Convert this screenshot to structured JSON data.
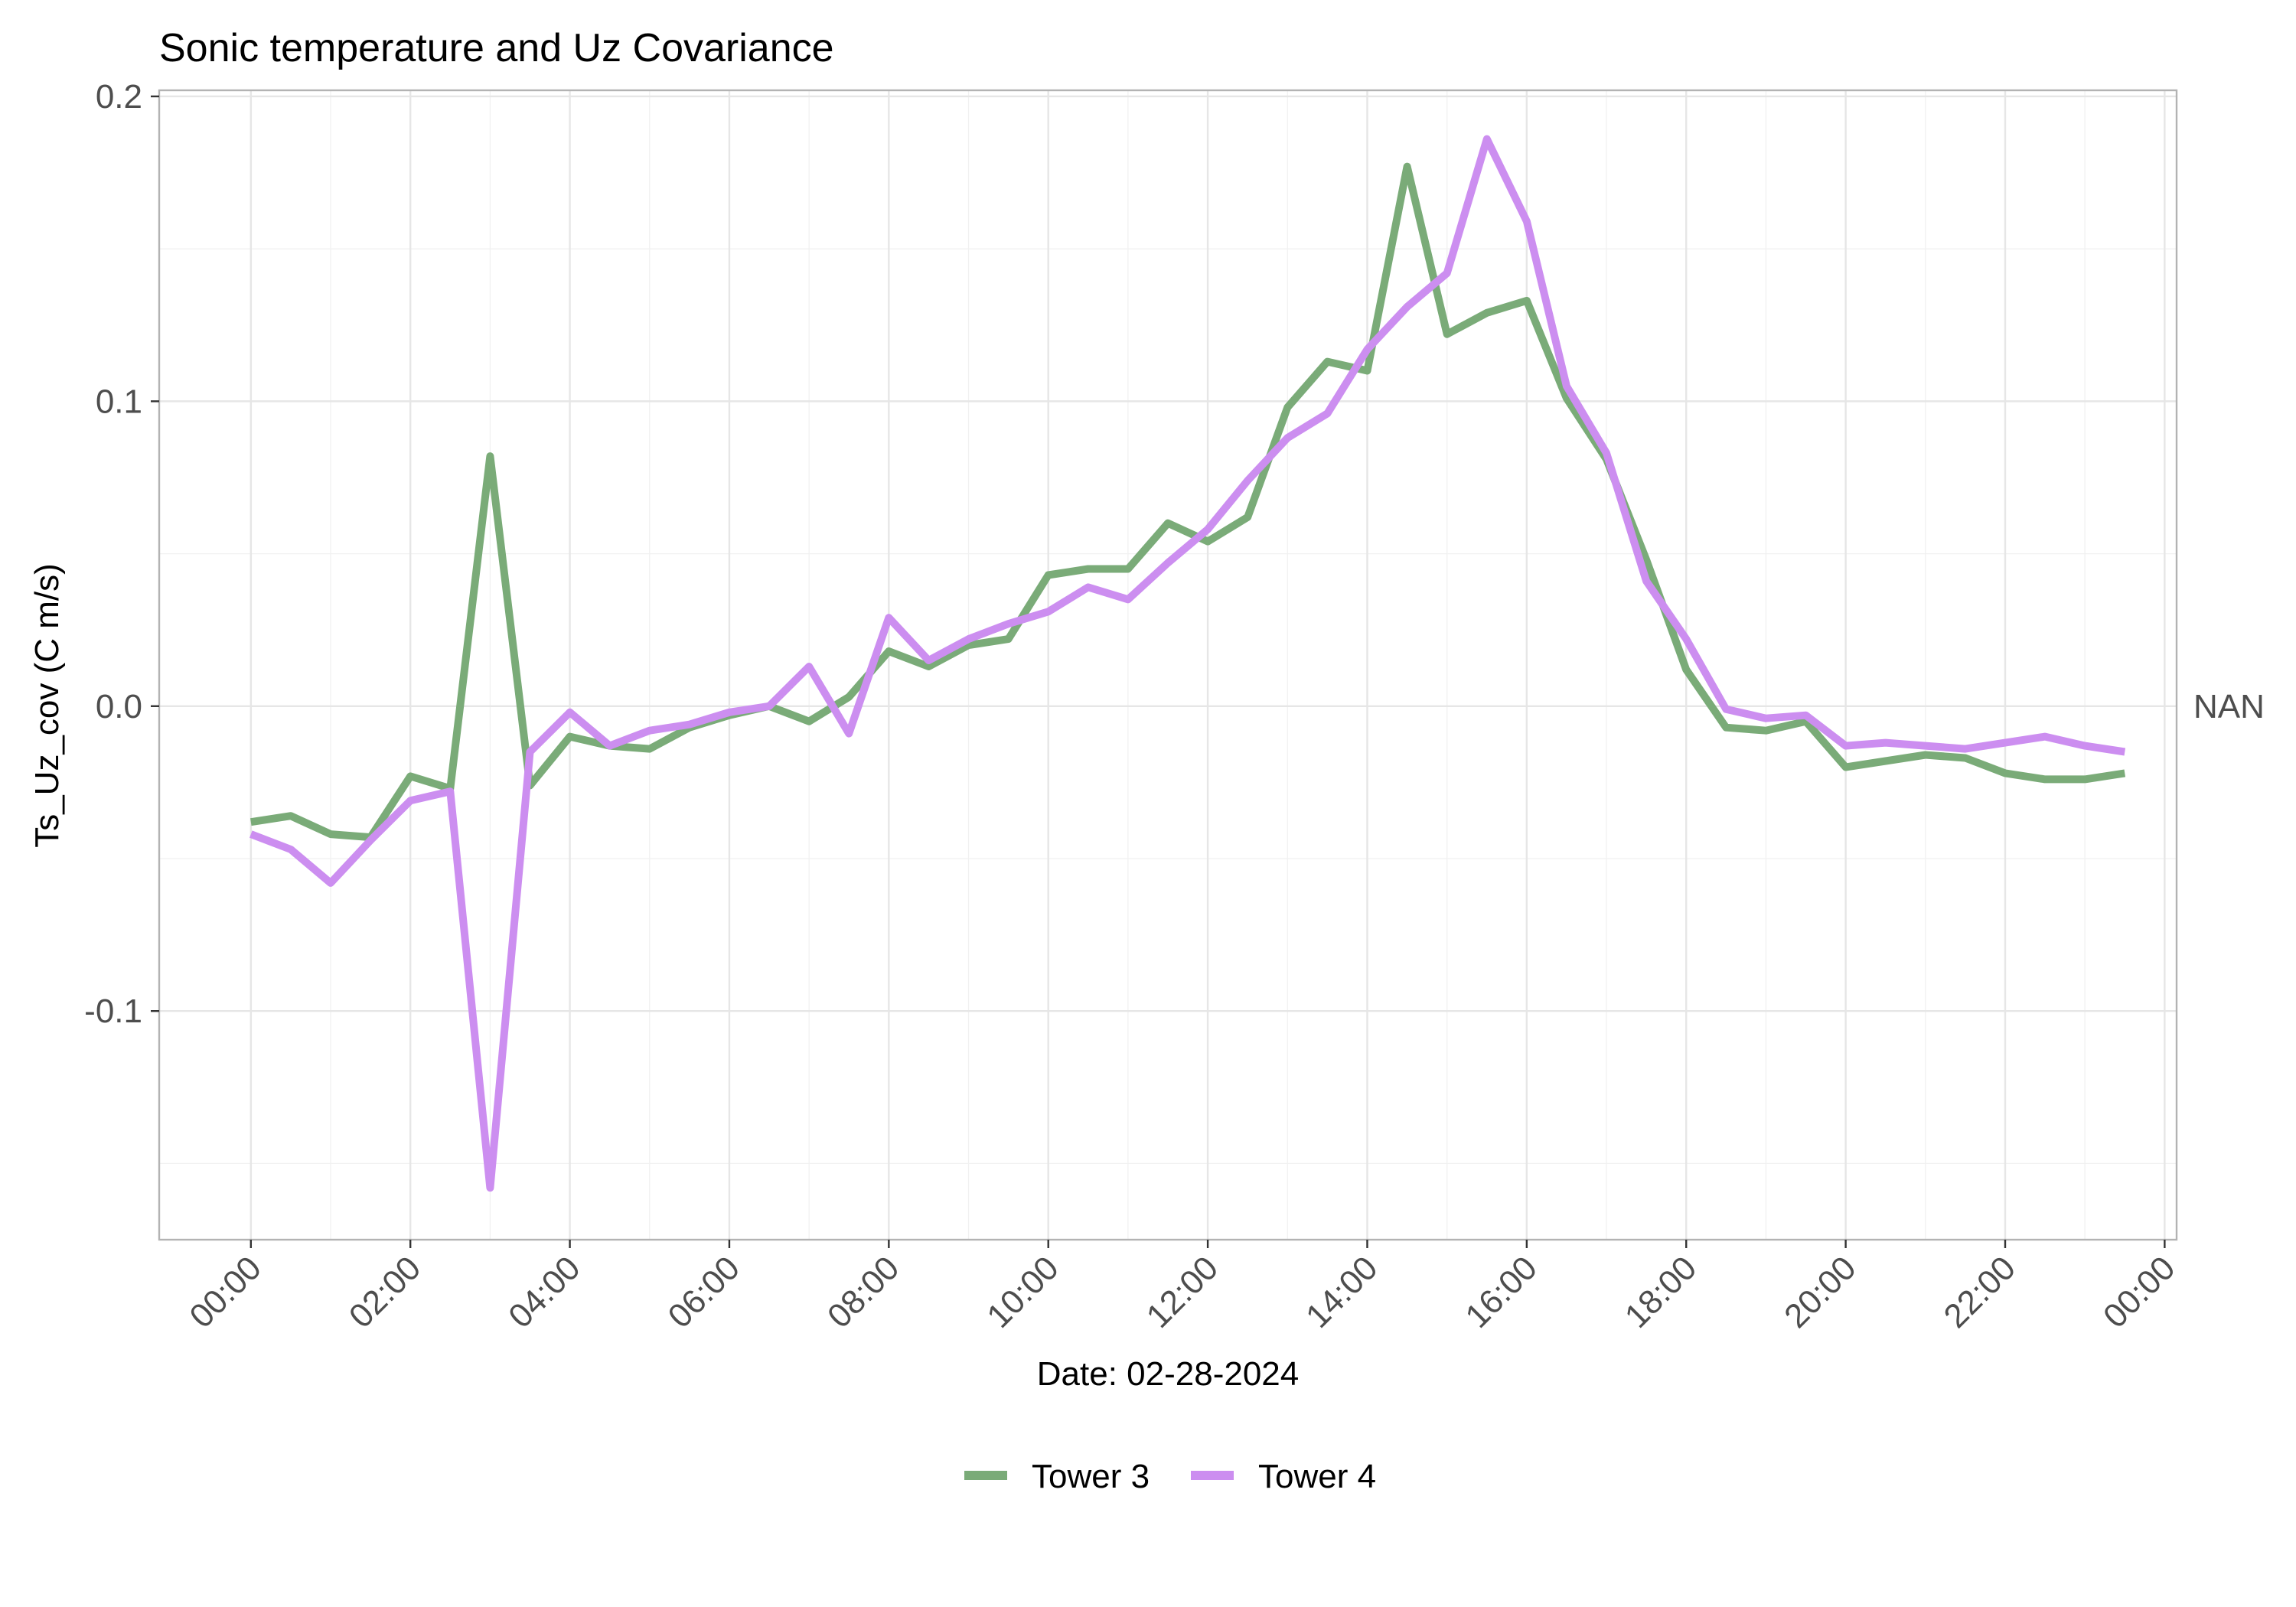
{
  "chart_data": {
    "type": "line",
    "title": "Sonic temperature and Uz Covariance",
    "xlabel": "Date: 02-28-2024",
    "ylabel": "Ts_Uz_cov (C m/s)",
    "secondary_axis_label": "NAN",
    "x_ticks": [
      "00:00",
      "02:00",
      "04:00",
      "06:00",
      "08:00",
      "10:00",
      "12:00",
      "14:00",
      "16:00",
      "18:00",
      "20:00",
      "22:00",
      "00:00"
    ],
    "y_ticks": [
      "-0.1",
      "0.0",
      "0.1",
      "0.2"
    ],
    "xlim_hours": [
      -1.15,
      24.15
    ],
    "ylim": [
      -0.175,
      0.202
    ],
    "grid": true,
    "legend_position": "bottom",
    "x": [
      "00:00",
      "00:30",
      "01:00",
      "01:30",
      "02:00",
      "02:30",
      "03:00",
      "03:30",
      "04:00",
      "04:30",
      "05:00",
      "05:30",
      "06:00",
      "06:30",
      "07:00",
      "07:30",
      "08:00",
      "08:30",
      "09:00",
      "09:30",
      "10:00",
      "10:30",
      "11:00",
      "11:30",
      "12:00",
      "12:30",
      "13:00",
      "13:30",
      "14:00",
      "14:30",
      "15:00",
      "15:30",
      "16:00",
      "16:30",
      "17:00",
      "17:30",
      "18:00",
      "18:30",
      "19:00",
      "19:30",
      "20:00",
      "20:30",
      "21:00",
      "21:30",
      "22:00",
      "22:30",
      "23:00",
      "23:30"
    ],
    "series": [
      {
        "name": "Tower 3",
        "color": "#7aab78",
        "values": [
          -0.038,
          -0.036,
          -0.042,
          -0.043,
          -0.023,
          -0.027,
          0.082,
          -0.026,
          -0.01,
          -0.013,
          -0.014,
          -0.007,
          -0.003,
          0.0,
          -0.005,
          0.003,
          0.018,
          0.013,
          0.02,
          0.022,
          0.043,
          0.045,
          0.045,
          0.06,
          0.054,
          0.062,
          0.098,
          0.113,
          0.11,
          0.177,
          0.122,
          0.129,
          0.133,
          0.101,
          0.081,
          0.048,
          0.012,
          -0.007,
          -0.008,
          -0.005,
          -0.02,
          -0.018,
          -0.016,
          -0.017,
          -0.022,
          -0.024,
          -0.024,
          -0.022
        ]
      },
      {
        "name": "Tower 4",
        "color": "#cc8ef0",
        "values": [
          -0.042,
          -0.047,
          -0.058,
          -0.044,
          -0.031,
          -0.028,
          -0.158,
          -0.015,
          -0.002,
          -0.013,
          -0.008,
          -0.006,
          -0.002,
          0.0,
          0.013,
          -0.009,
          0.029,
          0.015,
          0.022,
          0.027,
          0.031,
          0.039,
          0.035,
          0.047,
          0.058,
          0.074,
          0.088,
          0.096,
          0.117,
          0.131,
          0.142,
          0.186,
          0.159,
          0.105,
          0.083,
          0.041,
          0.022,
          -0.001,
          -0.004,
          -0.003,
          -0.013,
          -0.012,
          -0.013,
          -0.014,
          -0.012,
          -0.01,
          -0.013,
          -0.015
        ]
      }
    ]
  }
}
